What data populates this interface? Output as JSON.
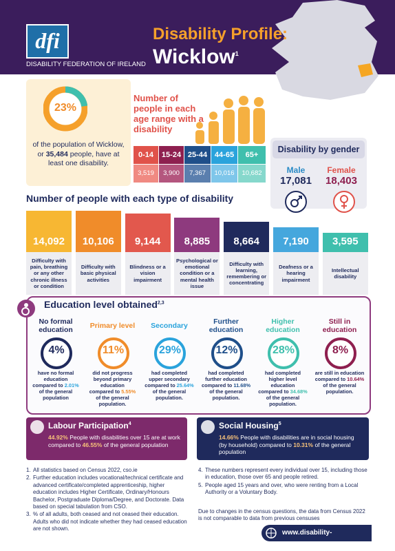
{
  "header": {
    "logo": "dfi",
    "organization": "DISABILITY FEDERATION OF IRELAND",
    "title": "Disability Profile:",
    "county": "Wicklow",
    "county_note": "1"
  },
  "summary": {
    "percent": "23%",
    "text_before": "of the population of Wicklow, or",
    "count": "35,484",
    "text_after": "people, have at least one disability."
  },
  "age": {
    "title": "Number of people in each age range with a disability",
    "groups": [
      {
        "range": "0-14",
        "count": "3,519"
      },
      {
        "range": "15-24",
        "count": "3,900"
      },
      {
        "range": "25-44",
        "count": "7,367"
      },
      {
        "range": "44-65",
        "count": "10,016"
      },
      {
        "range": "65+",
        "count": "10,682"
      }
    ]
  },
  "gender": {
    "title": "Disability by gender",
    "male": {
      "label": "Male",
      "count": "17,081"
    },
    "female": {
      "label": "Female",
      "count": "18,403"
    }
  },
  "types": {
    "title": "Number of people with each type of disability",
    "items": [
      {
        "count": "14,092",
        "label": "Difficulty with pain, breathing or any other chronic illness or condition"
      },
      {
        "count": "10,106",
        "label": "Difficulty with basic physical activities"
      },
      {
        "count": "9,144",
        "label": "Blindness or a vision impairment"
      },
      {
        "count": "8,885",
        "label": "Psychological or emotional condition or a mental health issue"
      },
      {
        "count": "8,664",
        "label": "Difficulty with learning, remembering or concentrating"
      },
      {
        "count": "7,190",
        "label": "Deafness or a hearing impairment"
      },
      {
        "count": "3,595",
        "label": "Intellectual disability"
      }
    ]
  },
  "education": {
    "title": "Education level obtained",
    "note": "2,3",
    "levels": [
      {
        "name": "No formal education",
        "percent": "4%",
        "before": "have no formal education compared to",
        "compare": "2.01%",
        "after": "of the general population"
      },
      {
        "name": "Primary level",
        "percent": "11%",
        "before": "did not progress beyond primary education compared to",
        "compare": "5.55%",
        "after": "of the general population."
      },
      {
        "name": "Secondary",
        "percent": "29%",
        "before": "had completed upper secondary compared to",
        "compare": "25.64%",
        "after": "of the general population."
      },
      {
        "name": "Further education",
        "percent": "12%",
        "before": "had completed further education compared to",
        "compare": "11.68%",
        "after": "of the general population."
      },
      {
        "name": "Higher education",
        "percent": "28%",
        "before": "had completed higher level education compared to",
        "compare": "34.68%",
        "after": "of the general population."
      },
      {
        "name": "Still in education",
        "percent": "8%",
        "before": "are still in education compared to",
        "compare": "10.64%",
        "after": "of the general population."
      }
    ]
  },
  "labour": {
    "title": "Labour Participation",
    "note": "4",
    "percent": "44.92%",
    "before": "People with disabilities over 15 are at work compared to",
    "compare": "46.55%",
    "after": "of the general population"
  },
  "housing": {
    "title": "Social Housing",
    "note": "5",
    "percent": "14.66%",
    "before": "People with disabilities are in social housing (by household) compared to",
    "compare": "10.31%",
    "after": "of the general population"
  },
  "footnotes": {
    "left": [
      {
        "n": "1.",
        "text": "All statistics based on Census 2022, cso.ie"
      },
      {
        "n": "2.",
        "text": "Further education includes vocational/technical certificate and advanced certificate/completed apprenticeship, higher education includes Higher Certificate, Ordinary/Honours Bachelor, Postgraduate Diploma/Degree, and Doctorate. Data based on special tabulation from CSO."
      },
      {
        "n": "3.",
        "text": "% of all adults, both ceased and not ceased their education. Adults who did not indicate whether they had ceased education are not shown."
      }
    ],
    "right": [
      {
        "n": "4.",
        "text": "These numbers represent every individual over 15, including those in education, those over 65 and people retired."
      },
      {
        "n": "5.",
        "text": "People aged 15 years and over, who were renting from a Local Authority or a Voluntary Body."
      }
    ],
    "notice": "Due to changes in the census questions, the data from Census 2022 is not comparable to data from previous censuses",
    "website": "www.disability-federation.ie"
  }
}
